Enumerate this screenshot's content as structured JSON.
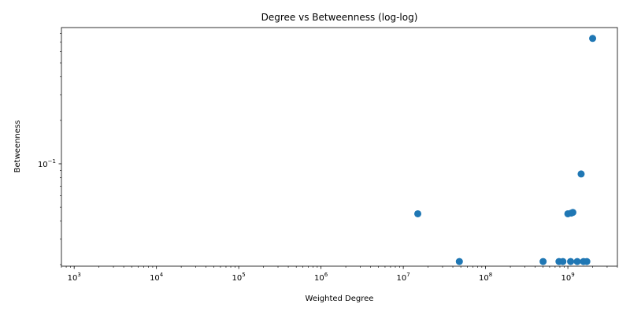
{
  "chart_data": {
    "type": "scatter",
    "title": "Degree vs Betweenness (log-log)",
    "xlabel": "Weighted Degree",
    "ylabel": "Betweenness",
    "xscale": "log",
    "yscale": "log",
    "xlim": [
      700,
      4000000000
    ],
    "ylim": [
      0.0195,
      0.88
    ],
    "grid": false,
    "marker_color": "#1f77b4",
    "x_ticks": [
      {
        "value": 1000,
        "base": "10",
        "exp": "3"
      },
      {
        "value": 10000,
        "base": "10",
        "exp": "4"
      },
      {
        "value": 100000,
        "base": "10",
        "exp": "5"
      },
      {
        "value": 1000000,
        "base": "10",
        "exp": "6"
      },
      {
        "value": 10000000,
        "base": "10",
        "exp": "7"
      },
      {
        "value": 100000000,
        "base": "10",
        "exp": "8"
      },
      {
        "value": 1000000000,
        "base": "10",
        "exp": "9"
      }
    ],
    "y_ticks": [
      {
        "value": 0.1,
        "base": "10",
        "exp": "−1"
      }
    ],
    "points": [
      {
        "x": 15000000,
        "y": 0.045
      },
      {
        "x": 48000000,
        "y": 0.021
      },
      {
        "x": 500000000,
        "y": 0.021
      },
      {
        "x": 780000000,
        "y": 0.021
      },
      {
        "x": 870000000,
        "y": 0.021
      },
      {
        "x": 1000000000,
        "y": 0.045
      },
      {
        "x": 1080000000,
        "y": 0.021
      },
      {
        "x": 1100000000,
        "y": 0.0455
      },
      {
        "x": 1150000000,
        "y": 0.046
      },
      {
        "x": 1300000000,
        "y": 0.021
      },
      {
        "x": 1450000000,
        "y": 0.085
      },
      {
        "x": 1550000000,
        "y": 0.021
      },
      {
        "x": 1700000000,
        "y": 0.021
      },
      {
        "x": 2000000000,
        "y": 0.74
      }
    ]
  }
}
